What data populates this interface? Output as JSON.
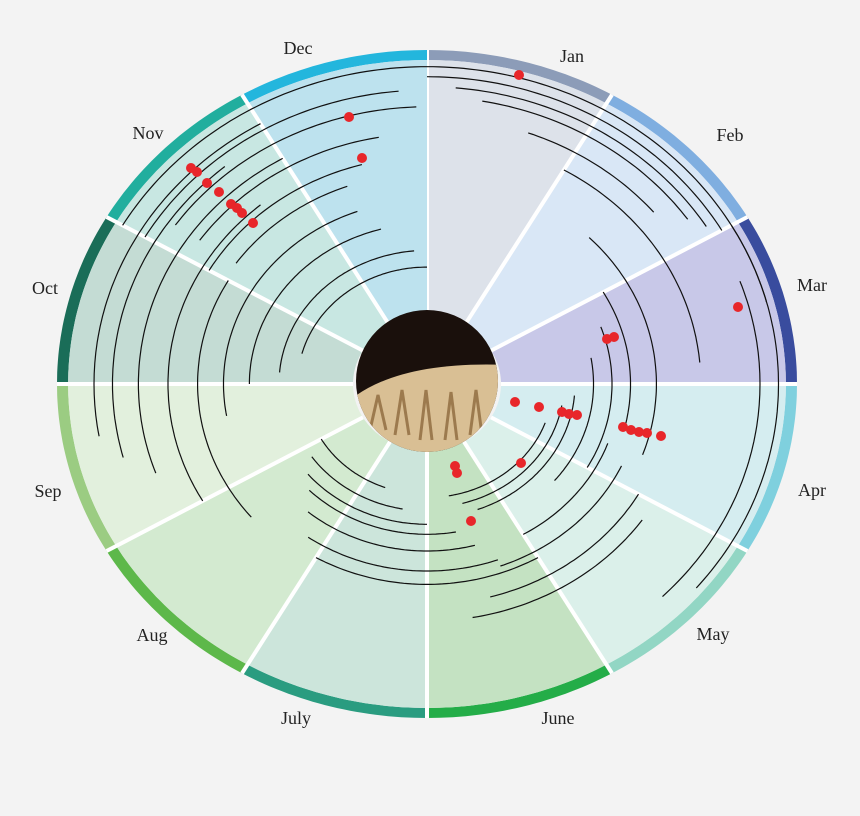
{
  "months": [
    {
      "label": "Jan",
      "band": "#8c9cb8",
      "fill": "#dde2ea"
    },
    {
      "label": "Feb",
      "band": "#7faee0",
      "fill": "#d9e7f6"
    },
    {
      "label": "Mar",
      "band": "#394c9e",
      "fill": "#c8c8e8"
    },
    {
      "label": "Apr",
      "band": "#7fd0de",
      "fill": "#d5edf0"
    },
    {
      "label": "May",
      "band": "#92d6c4",
      "fill": "#dbf0ea"
    },
    {
      "label": "June",
      "band": "#24ad48",
      "fill": "#c4e2c2"
    },
    {
      "label": "July",
      "band": "#2a9c80",
      "fill": "#cce5db"
    },
    {
      "label": "Aug",
      "band": "#5db84a",
      "fill": "#d3ead0"
    },
    {
      "label": "Sep",
      "band": "#9bcc82",
      "fill": "#e2f0dd"
    },
    {
      "label": "Oct",
      "band": "#1a6d58",
      "fill": "#c4dcd4"
    },
    {
      "label": "Nov",
      "band": "#21ae9e",
      "fill": "#c8e7e2"
    },
    {
      "label": "Dec",
      "band": "#23b6dd",
      "fill": "#bde2ee"
    }
  ]
}
